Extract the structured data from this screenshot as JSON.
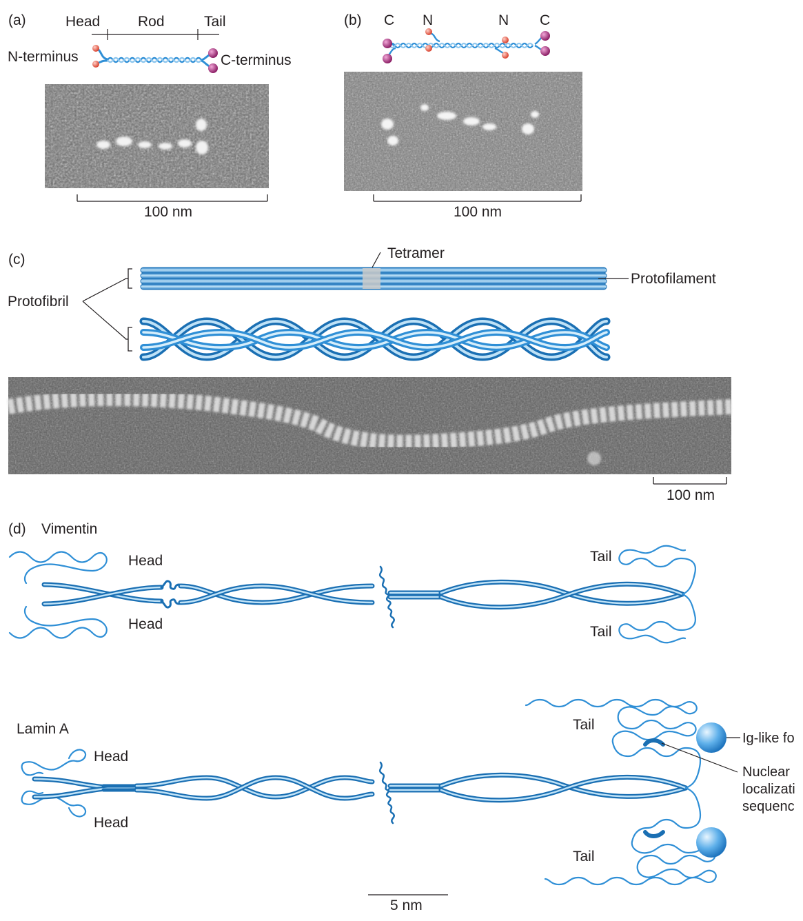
{
  "colors": {
    "blue": "#2f8fd6",
    "blue_dark": "#1a6fb3",
    "blue_light": "#bfe2f7",
    "head_red": "#e05a4a",
    "tail_magenta": "#a8287a",
    "micrograph_gray": "#7a7a7a"
  },
  "panel_a": {
    "letter": "(a)",
    "head": "Head",
    "rod": "Rod",
    "tail": "Tail",
    "n_terminus": "N-terminus",
    "c_terminus": "C-terminus",
    "scale": "100 nm"
  },
  "panel_b": {
    "letter": "(b)",
    "c_left": "C",
    "n_left": "N",
    "n_right": "N",
    "c_right": "C",
    "scale": "100 nm"
  },
  "panel_c": {
    "letter": "(c)",
    "tetramer": "Tetramer",
    "protofilament": "Protofilament",
    "protofibril": "Protofibril",
    "scale": "100 nm"
  },
  "panel_d": {
    "letter": "(d)",
    "vimentin": "Vimentin",
    "head": "Head",
    "tail": "Tail",
    "lamin_a": "Lamin A",
    "ig_like": "Ig-like fo",
    "nls_1": "Nuclear",
    "nls_2": "localizati",
    "nls_3": "sequenc",
    "scale": "5 nm"
  }
}
